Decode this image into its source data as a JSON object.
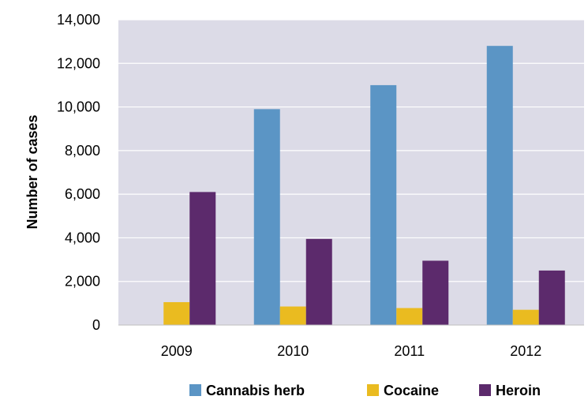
{
  "chart_data": {
    "type": "bar",
    "title": "",
    "xlabel": "",
    "ylabel": "Number of cases",
    "categories": [
      "2009",
      "2010",
      "2011",
      "2012"
    ],
    "series": [
      {
        "name": "Cannabis herb",
        "color": "#5b95c5",
        "values": [
          0,
          9900,
          11000,
          12800
        ]
      },
      {
        "name": "Cocaine",
        "color": "#eabb20",
        "values": [
          1050,
          850,
          780,
          700
        ]
      },
      {
        "name": "Heroin",
        "color": "#5c2a6c",
        "values": [
          6100,
          3950,
          2950,
          2500
        ]
      }
    ],
    "ylim": [
      0,
      14000
    ],
    "yticks": [
      0,
      2000,
      4000,
      6000,
      8000,
      10000,
      12000,
      14000
    ],
    "ytick_labels": [
      "0",
      "2,000",
      "4,000",
      "6,000",
      "8,000",
      "10,000",
      "12,000",
      "14,000"
    ],
    "grid": true,
    "plot_background": "#dcdbe7",
    "legend_position": "bottom"
  }
}
